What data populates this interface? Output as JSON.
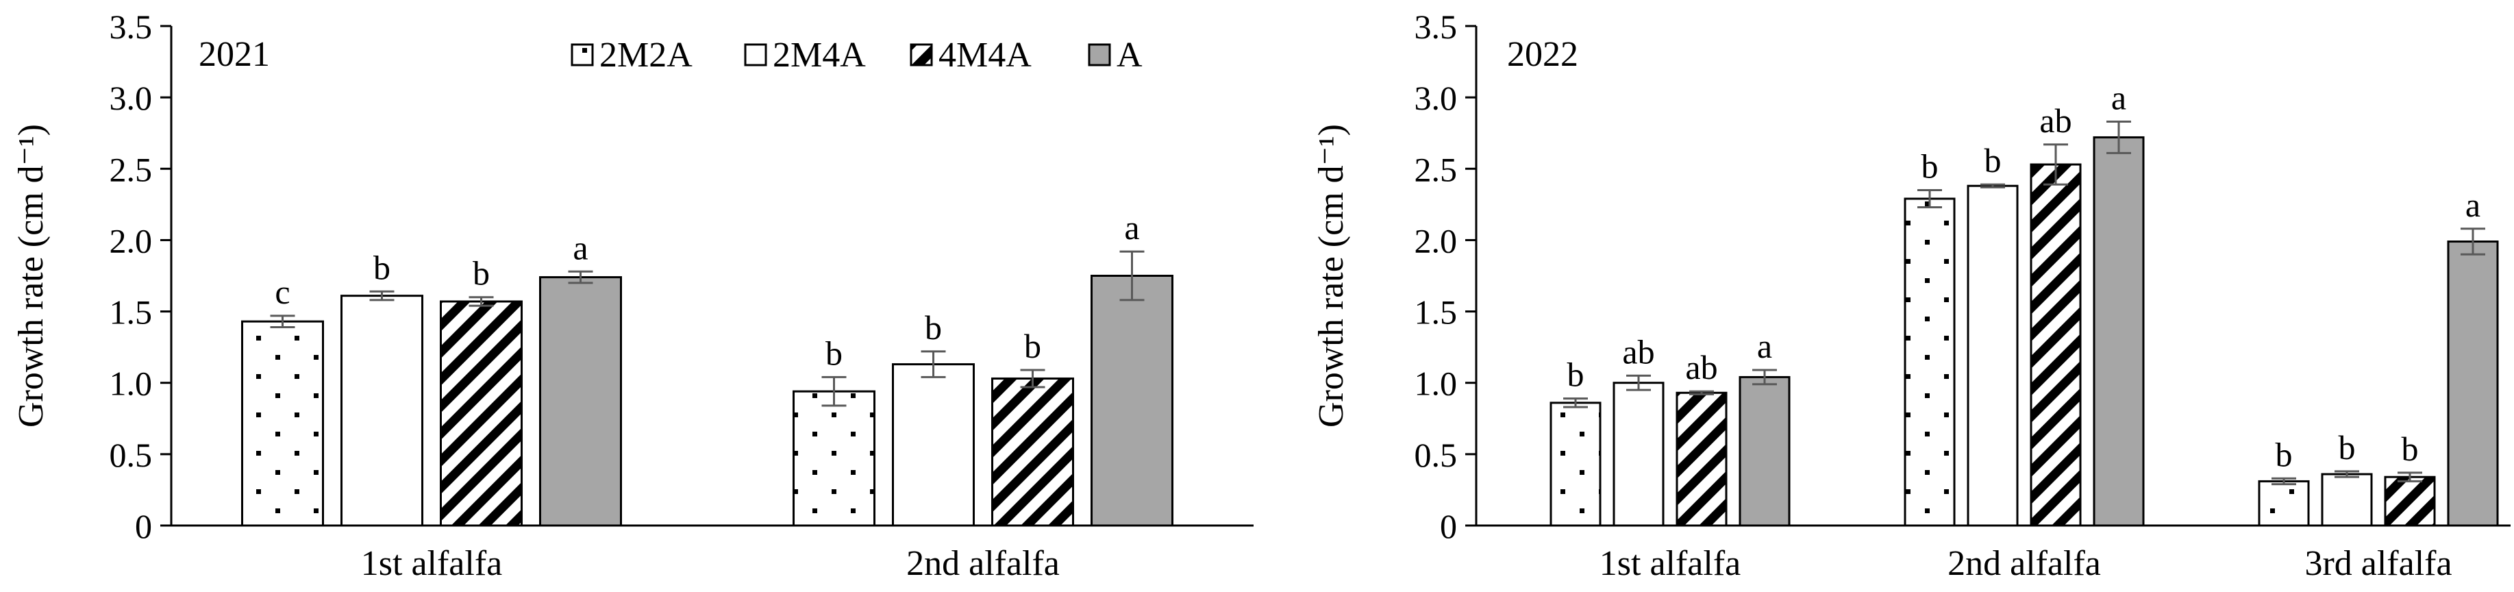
{
  "legend": {
    "items": [
      {
        "label": "2M2A",
        "pattern": "dots"
      },
      {
        "label": "2M4A",
        "pattern": "none"
      },
      {
        "label": "4M4A",
        "pattern": "diagonal"
      },
      {
        "label": "A",
        "pattern": "solid"
      }
    ]
  },
  "colors": {
    "solid_fill": "#a6a6a6",
    "axis": "#000000",
    "error_bar": "#595959",
    "bar_stroke": "#000000",
    "background": "#ffffff"
  },
  "chart_data": [
    {
      "type": "bar",
      "year_label": "2021",
      "ylabel": "Growth rate (cm d⁻¹)",
      "ylim": [
        0,
        3.5
      ],
      "yticks": [
        "0",
        "0.5",
        "1.0",
        "1.5",
        "2.0",
        "2.5",
        "3.0",
        "3.5"
      ],
      "categories": [
        "1st alfalfa",
        "2nd alfalfa"
      ],
      "series": [
        {
          "name": "2M2A",
          "values": [
            1.43,
            0.94
          ],
          "errors": [
            0.04,
            0.1
          ],
          "letters": [
            "c",
            "b"
          ]
        },
        {
          "name": "2M4A",
          "values": [
            1.61,
            1.13
          ],
          "errors": [
            0.03,
            0.09
          ],
          "letters": [
            "b",
            "b"
          ]
        },
        {
          "name": "4M4A",
          "values": [
            1.57,
            1.03
          ],
          "errors": [
            0.03,
            0.06
          ],
          "letters": [
            "b",
            "b"
          ]
        },
        {
          "name": "A",
          "values": [
            1.74,
            1.75
          ],
          "errors": [
            0.04,
            0.17
          ],
          "letters": [
            "a",
            "a"
          ]
        }
      ],
      "grid": false,
      "legend_position": "top"
    },
    {
      "type": "bar",
      "year_label": "2022",
      "ylabel": "Growth rate (cm d⁻¹)",
      "ylim": [
        0,
        3.5
      ],
      "yticks": [
        "0",
        "0.5",
        "1.0",
        "1.5",
        "2.0",
        "2.5",
        "3.0",
        "3.5"
      ],
      "categories": [
        "1st alfalfa",
        "2nd alfalfa",
        "3rd alfalfa"
      ],
      "series": [
        {
          "name": "2M2A",
          "values": [
            0.86,
            2.29,
            0.31
          ],
          "errors": [
            0.03,
            0.06,
            0.02
          ],
          "letters": [
            "b",
            "b",
            "b"
          ]
        },
        {
          "name": "2M4A",
          "values": [
            1.0,
            2.38,
            0.36
          ],
          "errors": [
            0.05,
            0.01,
            0.02
          ],
          "letters": [
            "ab",
            "b",
            "b"
          ]
        },
        {
          "name": "4M4A",
          "values": [
            0.93,
            2.53,
            0.34
          ],
          "errors": [
            0.01,
            0.14,
            0.03
          ],
          "letters": [
            "ab",
            "ab",
            "b"
          ]
        },
        {
          "name": "A",
          "values": [
            1.04,
            2.72,
            1.99
          ],
          "errors": [
            0.05,
            0.11,
            0.09
          ],
          "letters": [
            "a",
            "a",
            "a"
          ]
        }
      ],
      "grid": false,
      "legend_position": "none"
    }
  ]
}
